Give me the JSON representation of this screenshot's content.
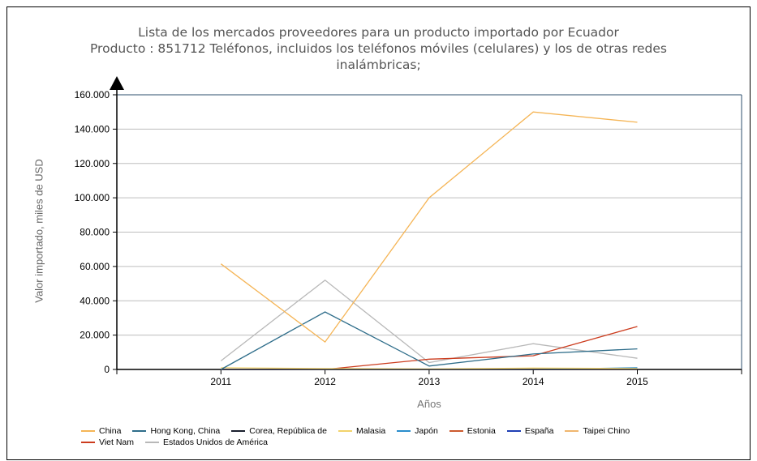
{
  "chart_data": {
    "type": "line",
    "title_lines": [
      "Lista de los mercados proveedores para un producto importado por Ecuador",
      "Producto : 851712 Teléfonos, incluidos los teléfonos móviles (celulares) y los de otras redes",
      "inalámbricas;"
    ],
    "xlabel": "Años",
    "ylabel": "Valor importado, miles de USD",
    "x": [
      "2011",
      "2012",
      "2013",
      "2014",
      "2015"
    ],
    "ylim": [
      0,
      160000
    ],
    "y_ticks": [
      "0",
      "20.000",
      "40.000",
      "60.000",
      "80.000",
      "100.000",
      "120.000",
      "140.000",
      "160.000"
    ],
    "grid": true,
    "legend_position": "bottom",
    "series": [
      {
        "name": "China",
        "color": "#f5b556",
        "values": [
          61500,
          16000,
          100000,
          150000,
          144000
        ]
      },
      {
        "name": "Hong Kong, China",
        "color": "#2e6d8a",
        "values": [
          0,
          33500,
          2000,
          9000,
          12000
        ]
      },
      {
        "name": "Corea, República de",
        "color": "#1a1f2e",
        "values": [
          0,
          0,
          0,
          0,
          0
        ]
      },
      {
        "name": "Malasia",
        "color": "#f2d36b",
        "values": [
          1000,
          500,
          300,
          800,
          500
        ]
      },
      {
        "name": "Japón",
        "color": "#2a8dcc",
        "values": [
          0,
          0,
          0,
          0,
          1000
        ]
      },
      {
        "name": "Estonia",
        "color": "#cc5a2e",
        "values": [
          0,
          0,
          0,
          0,
          0
        ]
      },
      {
        "name": "España",
        "color": "#1f3fb4",
        "values": [
          0,
          0,
          0,
          0,
          0
        ]
      },
      {
        "name": "Taipei Chino",
        "color": "#f0b66e",
        "values": [
          0,
          0,
          0,
          0,
          0
        ]
      },
      {
        "name": "Viet Nam",
        "color": "#cc3c1e",
        "values": [
          0,
          0,
          6000,
          8000,
          25000
        ]
      },
      {
        "name": "Estados Unidos de América",
        "color": "#b8b8b8",
        "values": [
          5000,
          52000,
          4000,
          15000,
          6500
        ]
      }
    ]
  }
}
